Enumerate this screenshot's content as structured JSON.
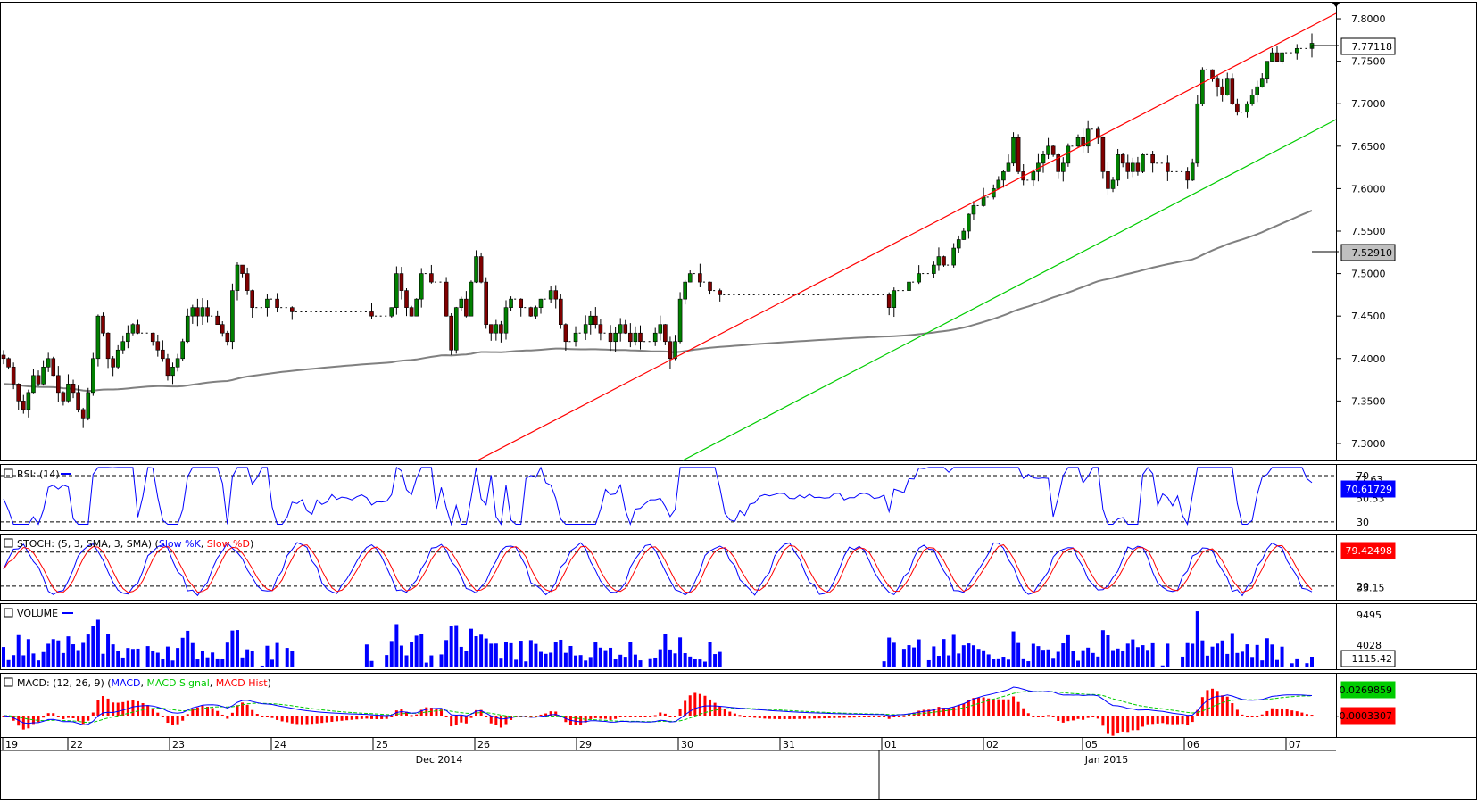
{
  "chart_data": [
    {
      "type": "candlestick",
      "name": "price",
      "ylim": [
        7.28,
        7.82
      ],
      "y_ticks": [
        "7.3000",
        "7.3500",
        "7.4000",
        "7.4500",
        "7.5000",
        "7.5500",
        "7.6000",
        "7.6500",
        "7.7000",
        "7.7500",
        "7.8000"
      ],
      "last_price_label": "7.77118",
      "ma_label": "7.52910",
      "ma_color": "#808080",
      "candles_hint": "hourly bars 19 Dec 2014 – 07 Jan 2015",
      "closes": [
        7.4,
        7.39,
        7.37,
        7.35,
        7.34,
        7.36,
        7.38,
        7.37,
        7.39,
        7.4,
        7.38,
        7.36,
        7.35,
        7.37,
        7.36,
        7.34,
        7.33,
        7.36,
        7.4,
        7.45,
        7.43,
        7.4,
        7.39,
        7.41,
        7.42,
        7.43,
        7.44,
        7.43,
        7.43,
        7.43,
        7.42,
        7.41,
        7.4,
        7.38,
        7.39,
        7.4,
        7.42,
        7.45,
        7.46,
        7.45,
        7.46,
        7.45,
        7.45,
        7.44,
        7.43,
        7.42,
        7.48,
        7.51,
        7.5,
        7.48,
        7.46,
        7.46,
        7.46,
        7.47,
        7.47,
        7.46,
        7.46,
        7.46,
        7.455,
        7.455,
        7.455,
        7.455,
        7.455,
        7.455,
        7.455,
        7.455,
        7.455,
        7.455,
        7.455,
        7.455,
        7.455,
        7.455,
        7.455,
        7.455,
        7.45,
        7.45,
        7.45,
        7.45,
        7.46,
        7.5,
        7.48,
        7.46,
        7.45,
        7.47,
        7.5,
        7.5,
        7.49,
        7.49,
        7.49,
        7.45,
        7.41,
        7.46,
        7.47,
        7.45,
        7.49,
        7.52,
        7.49,
        7.44,
        7.43,
        7.44,
        7.43,
        7.46,
        7.47,
        7.47,
        7.46,
        7.46,
        7.45,
        7.46,
        7.47,
        7.47,
        7.48,
        7.47,
        7.44,
        7.42,
        7.42,
        7.43,
        7.43,
        7.44,
        7.45,
        7.44,
        7.43,
        7.43,
        7.42,
        7.43,
        7.44,
        7.43,
        7.42,
        7.43,
        7.42,
        7.42,
        7.42,
        7.43,
        7.44,
        7.42,
        7.4,
        7.42,
        7.47,
        7.49,
        7.5,
        7.5,
        7.49,
        7.49,
        7.48,
        7.48,
        7.475,
        7.475,
        7.475,
        7.475,
        7.475,
        7.475,
        7.475,
        7.475,
        7.475,
        7.475,
        7.475,
        7.475,
        7.475,
        7.475,
        7.475,
        7.475,
        7.475,
        7.475,
        7.475,
        7.475,
        7.475,
        7.475,
        7.475,
        7.475,
        7.475,
        7.475,
        7.475,
        7.475,
        7.475,
        7.475,
        7.475,
        7.475,
        7.475,
        7.475,
        7.46,
        7.48,
        7.48,
        7.48,
        7.49,
        7.49,
        7.5,
        7.5,
        7.5,
        7.51,
        7.52,
        7.51,
        7.51,
        7.53,
        7.54,
        7.55,
        7.57,
        7.58,
        7.58,
        7.59,
        7.59,
        7.6,
        7.61,
        7.62,
        7.63,
        7.66,
        7.62,
        7.61,
        7.61,
        7.62,
        7.63,
        7.64,
        7.65,
        7.64,
        7.62,
        7.63,
        7.65,
        7.65,
        7.66,
        7.65,
        7.67,
        7.67,
        7.66,
        7.62,
        7.6,
        7.61,
        7.64,
        7.63,
        7.62,
        7.63,
        7.62,
        7.64,
        7.64,
        7.63,
        7.63,
        7.63,
        7.62,
        7.62,
        7.62,
        7.62,
        7.61,
        7.63,
        7.7,
        7.74,
        7.74,
        7.73,
        7.72,
        7.71,
        7.73,
        7.7,
        7.69,
        7.69,
        7.7,
        7.71,
        7.72,
        7.73,
        7.75,
        7.76,
        7.75,
        7.76,
        7.76,
        7.76,
        7.765,
        7.765,
        7.765,
        7.77118
      ]
    },
    {
      "type": "line",
      "name": "RSI",
      "title": "RSI: (14)",
      "ylim": [
        23,
        80
      ],
      "levels": [
        70,
        30
      ],
      "y_ticks": [
        "70",
        "50.53",
        "30"
      ],
      "top_tick": "77.63",
      "last_value": "70.61729"
    },
    {
      "type": "line",
      "name": "STOCH",
      "title_prefix": "STOCH: (5, 3, SMA, 3, SMA) (",
      "k_label": "Slow %K",
      "d_label": "Slow %D",
      "title_suffix": ")",
      "ylim": [
        0,
        100
      ],
      "levels": [
        80,
        20
      ],
      "y_ticks": [
        "80",
        "33.15",
        "20"
      ],
      "last_value": "79.42498"
    },
    {
      "type": "bar",
      "name": "VOLUME",
      "title": "VOLUME",
      "ylim": [
        0,
        10000
      ],
      "y_ticks": [
        "9495",
        "4028"
      ],
      "last_value": "1115.42"
    },
    {
      "type": "bar+line",
      "name": "MACD",
      "title_prefix": "MACD: (12, 26, 9) (",
      "macd_label": "MACD",
      "signal_label": "MACD Signal",
      "hist_label": "MACD Hist",
      "title_suffix": ")",
      "ylim": [
        -0.02,
        0.04
      ],
      "macd_value": "0.0269859",
      "hist_value": "-0.0003307"
    }
  ],
  "time_axis": {
    "days": [
      "19",
      "22",
      "23",
      "24",
      "25",
      "26",
      "29",
      "30",
      "31",
      "01",
      "02",
      "05",
      "06",
      "07"
    ],
    "months": [
      "Dec 2014",
      "Jan 2015"
    ]
  },
  "colors": {
    "bull": "#008000",
    "bear": "#800000",
    "upper_channel": "#ff0000",
    "lower_channel": "#00cc00",
    "rsi": "#0000ff",
    "stoch_k": "#0000ff",
    "stoch_d": "#ff0000",
    "volume": "#0000ff",
    "macd": "#0000ff",
    "signal": "#00cc00",
    "hist": "#ff0000",
    "label_blue": "#0000ff",
    "label_red": "#ff0000",
    "label_green": "#00cc00"
  }
}
